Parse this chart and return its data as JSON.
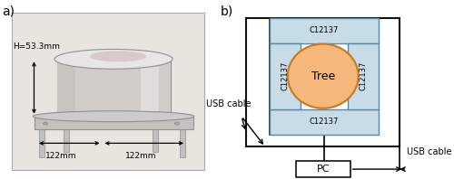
{
  "fig_width": 5.0,
  "fig_height": 1.98,
  "dpi": 100,
  "label_a": "a)",
  "label_b": "b)",
  "photo_bg": "#e8e4de",
  "sensor_color": "#c8dce8",
  "tree_ellipse_color": "#f5b87a",
  "tree_ellipse_edge": "#c87820",
  "tree_label": "Tree",
  "c12137_labels": [
    "C12137",
    "C12137",
    "C12137",
    "C12137"
  ],
  "pc_label": "PC",
  "usb_cable_label1": "USB cable",
  "usb_cable_label2": "USB cable",
  "h_label": "H=53.3mm",
  "w1_label": "122mm",
  "w2_label": "122mm",
  "annotation_fontsize": 7.0,
  "tree_fontsize": 9,
  "c12137_fontsize": 6.0,
  "pc_fontsize": 8,
  "label_fontsize": 10
}
